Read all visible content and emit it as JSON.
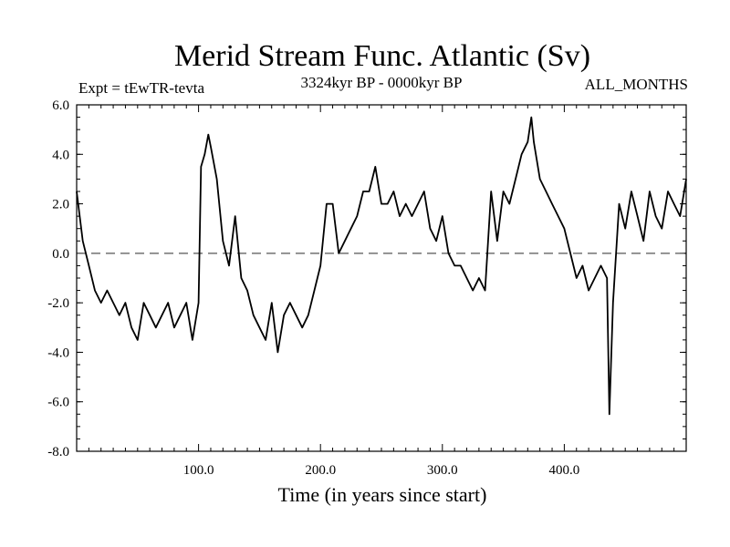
{
  "chart_data": {
    "type": "line",
    "title": "Merid Stream Func. Atlantic (Sv)",
    "header_left": "Expt = tEwTR-tevta",
    "header_center": "3324kyr BP - 0000kyr BP",
    "header_right": "ALL_MONTHS",
    "xlabel": "Time (in years since start)",
    "ylabel": "",
    "xlim": [
      0,
      500
    ],
    "ylim": [
      -8,
      6
    ],
    "x_ticks": [
      100,
      200,
      300,
      400
    ],
    "x_tick_labels": [
      "100.0",
      "200.0",
      "300.0",
      "400.0"
    ],
    "y_ticks": [
      -8,
      -6,
      -4,
      -2,
      0,
      2,
      4,
      6
    ],
    "y_tick_labels": [
      "-8.0",
      "-6.0",
      "-4.0",
      "-2.0",
      "0.0",
      "2.0",
      "4.0",
      "6.0"
    ],
    "reference_line": {
      "y": 0,
      "style": "dashed"
    },
    "series": [
      {
        "name": "Merid Stream Func. Atlantic",
        "x": [
          0,
          5,
          10,
          15,
          20,
          25,
          30,
          35,
          40,
          45,
          50,
          55,
          60,
          65,
          70,
          75,
          80,
          85,
          90,
          95,
          100,
          102,
          105,
          108,
          110,
          115,
          120,
          125,
          130,
          135,
          140,
          145,
          150,
          155,
          160,
          165,
          170,
          175,
          180,
          185,
          190,
          195,
          200,
          205,
          210,
          215,
          220,
          225,
          230,
          235,
          240,
          245,
          250,
          255,
          260,
          265,
          270,
          275,
          280,
          285,
          290,
          295,
          300,
          305,
          310,
          315,
          320,
          325,
          330,
          335,
          340,
          345,
          350,
          355,
          360,
          365,
          370,
          373,
          375,
          380,
          385,
          390,
          395,
          400,
          405,
          410,
          415,
          420,
          425,
          430,
          435,
          437,
          440,
          445,
          450,
          455,
          460,
          465,
          470,
          475,
          480,
          485,
          490,
          495,
          500
        ],
        "y": [
          2.5,
          0.5,
          -0.5,
          -1.5,
          -2,
          -1.5,
          -2,
          -2.5,
          -2,
          -3,
          -3.5,
          -2,
          -2.5,
          -3,
          -2.5,
          -2,
          -3,
          -2.5,
          -2,
          -3.5,
          -2,
          3.5,
          4,
          4.8,
          4.3,
          3,
          0.5,
          -0.5,
          1.5,
          -1,
          -1.5,
          -2.5,
          -3,
          -3.5,
          -2,
          -4,
          -2.5,
          -2,
          -2.5,
          -3,
          -2.5,
          -1.5,
          -0.5,
          2,
          2,
          0,
          0.5,
          1,
          1.5,
          2.5,
          2.5,
          3.5,
          2,
          2,
          2.5,
          1.5,
          2,
          1.5,
          2,
          2.5,
          1,
          0.5,
          1.5,
          0,
          -0.5,
          -0.5,
          -1,
          -1.5,
          -1,
          -1.5,
          2.5,
          0.5,
          2.5,
          2,
          3,
          4,
          4.5,
          5.5,
          4.5,
          3,
          2.5,
          2,
          1.5,
          1,
          0,
          -1,
          -0.5,
          -1.5,
          -1,
          -0.5,
          -1,
          -6.5,
          -2,
          2,
          1,
          2.5,
          1.5,
          0.5,
          2.5,
          1.5,
          1,
          2.5,
          2,
          1.5,
          3
        ]
      }
    ]
  }
}
